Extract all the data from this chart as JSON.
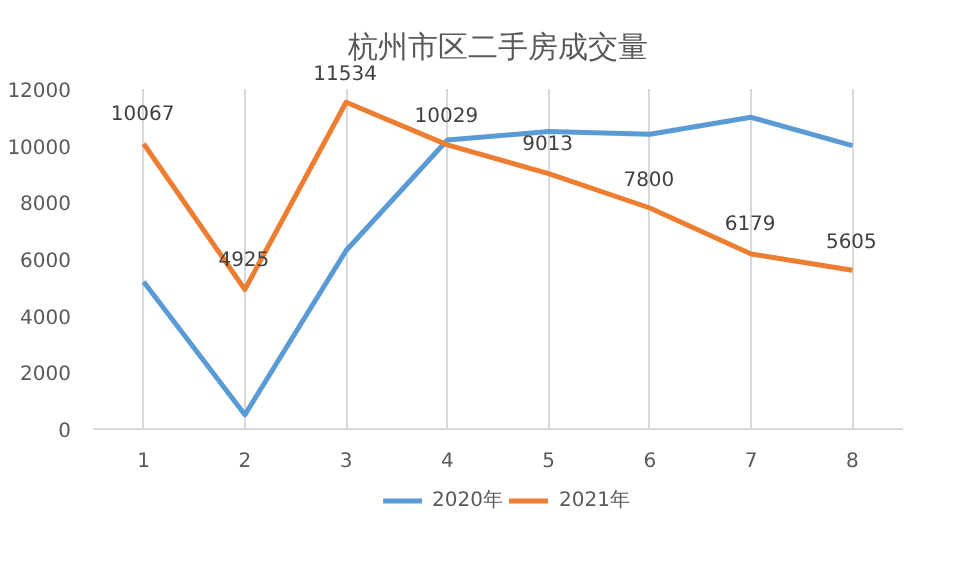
{
  "chart_data": {
    "type": "line",
    "title": "杭州市区二手房成交量",
    "categories": [
      "1",
      "2",
      "3",
      "4",
      "5",
      "6",
      "7",
      "8"
    ],
    "series": [
      {
        "name": "2020年",
        "color": "#5b9bd5",
        "values": [
          5200,
          500,
          6300,
          10200,
          10500,
          10400,
          11000,
          10000
        ]
      },
      {
        "name": "2021年",
        "color": "#ed7d31",
        "values": [
          10067,
          4925,
          11534,
          10029,
          9013,
          7800,
          6179,
          5605
        ],
        "value_labels": [
          "10067",
          "4925",
          "11534",
          "10029",
          "9013",
          "7800",
          "6179",
          "5605"
        ]
      }
    ],
    "ylim": [
      0,
      12000
    ],
    "yticks": [
      0,
      2000,
      4000,
      6000,
      8000,
      10000,
      12000
    ],
    "grid": "x",
    "legend": "bottom",
    "marker": "none",
    "line_style": "solid"
  }
}
